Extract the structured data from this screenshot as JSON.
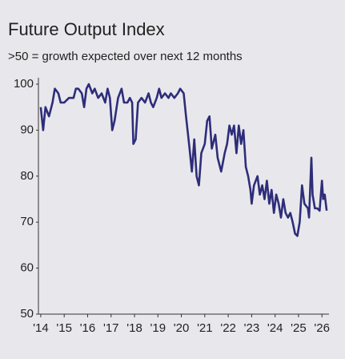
{
  "chart_data": {
    "type": "line",
    "title": "Future Output Index",
    "subtitle": ">50 = growth expected over next 12 months",
    "x": [
      2014.0,
      2014.1,
      2014.2,
      2014.35,
      2014.5,
      2014.6,
      2014.75,
      2014.85,
      2015.0,
      2015.2,
      2015.4,
      2015.5,
      2015.6,
      2015.75,
      2015.85,
      2015.95,
      2016.05,
      2016.2,
      2016.3,
      2016.45,
      2016.6,
      2016.75,
      2016.85,
      2016.95,
      2017.05,
      2017.15,
      2017.3,
      2017.45,
      2017.55,
      2017.7,
      2017.8,
      2017.9,
      2017.95,
      2018.05,
      2018.15,
      2018.3,
      2018.45,
      2018.6,
      2018.7,
      2018.8,
      2018.95,
      2019.05,
      2019.15,
      2019.3,
      2019.45,
      2019.55,
      2019.7,
      2019.85,
      2019.95,
      2020.1,
      2020.2,
      2020.35,
      2020.45,
      2020.55,
      2020.65,
      2020.75,
      2020.85,
      2021.0,
      2021.1,
      2021.2,
      2021.3,
      2021.45,
      2021.55,
      2021.7,
      2021.85,
      2021.95,
      2022.05,
      2022.15,
      2022.25,
      2022.35,
      2022.45,
      2022.55,
      2022.65,
      2022.75,
      2022.85,
      2022.95,
      2023.0,
      2023.1,
      2023.25,
      2023.35,
      2023.45,
      2023.55,
      2023.65,
      2023.75,
      2023.85,
      2023.95,
      2024.05,
      2024.15,
      2024.25,
      2024.35,
      2024.45,
      2024.55,
      2024.65,
      2024.75,
      2024.85,
      2024.95,
      2025.05,
      2025.15,
      2025.25,
      2025.4,
      2025.45,
      2025.55,
      2025.6,
      2025.7,
      2025.8,
      2025.9,
      2026.0,
      2026.05,
      2026.12,
      2026.2
    ],
    "series": [
      {
        "color": "#2e2d7a",
        "values": [
          95,
          90,
          95,
          93,
          96,
          99,
          98,
          96,
          96,
          97,
          97,
          99,
          99,
          98,
          95,
          99,
          100,
          98,
          99,
          97,
          98,
          96,
          99,
          97,
          90,
          92,
          97,
          99,
          96,
          96,
          97,
          96,
          87,
          88,
          96,
          97,
          96,
          98,
          96,
          95,
          97,
          99,
          97,
          98,
          97,
          98,
          97,
          98,
          99,
          98,
          93,
          86,
          81,
          88,
          80,
          78,
          85,
          87,
          92,
          93,
          86,
          89,
          84,
          81,
          85,
          87,
          91,
          89,
          91,
          85,
          91,
          87,
          90,
          82,
          80,
          77,
          74,
          78,
          80,
          76,
          78,
          75,
          79,
          74,
          77,
          72,
          76,
          74,
          71,
          75,
          72,
          71,
          72,
          70,
          67.5,
          67,
          70,
          78,
          74,
          73,
          71,
          84,
          76,
          73,
          73,
          72.5,
          79,
          75,
          76,
          72.5
        ]
      }
    ],
    "xlim": [
      2013.9,
      2026.3
    ],
    "xticks": [
      {
        "value": 2014,
        "label": "'14"
      },
      {
        "value": 2015,
        "label": "'15"
      },
      {
        "value": 2016,
        "label": "'16"
      },
      {
        "value": 2017,
        "label": "'17"
      },
      {
        "value": 2018,
        "label": "'18"
      },
      {
        "value": 2019,
        "label": "'19"
      },
      {
        "value": 2020,
        "label": "'20"
      },
      {
        "value": 2021,
        "label": "'21"
      },
      {
        "value": 2022,
        "label": "'22"
      },
      {
        "value": 2023,
        "label": "'23"
      },
      {
        "value": 2024,
        "label": "'24"
      },
      {
        "value": 2025,
        "label": "'25"
      },
      {
        "value": 2026,
        "label": "'26"
      }
    ],
    "ylim": [
      50,
      100
    ],
    "yticks": [
      50,
      60,
      70,
      80,
      90,
      100
    ],
    "grid": false
  }
}
